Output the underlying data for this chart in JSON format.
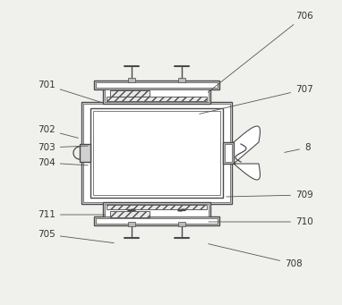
{
  "bg_color": "#f0f0ec",
  "line_color": "#4a4a4a",
  "label_color": "#333333",
  "figsize": [
    3.82,
    3.41
  ],
  "dpi": 100
}
